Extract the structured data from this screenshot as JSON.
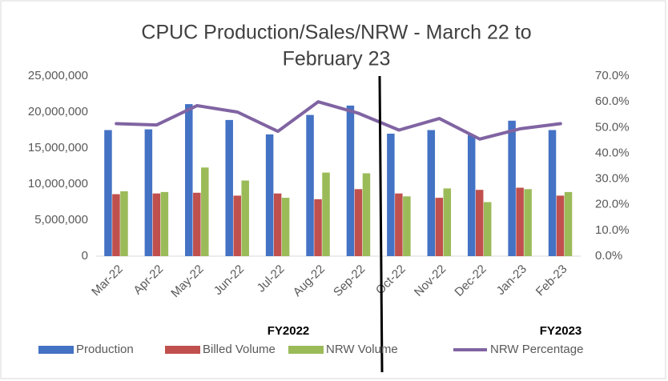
{
  "chart_data": {
    "type": "bar",
    "title_lines": [
      "CPUC Production/Sales/NRW - March 22 to",
      "February 23"
    ],
    "categories": [
      "Mar-22",
      "Apr-22",
      "May-22",
      "Jun-22",
      "Jul-22",
      "Aug-22",
      "Sep-22",
      "Oct-22",
      "Nov-22",
      "Dec-22",
      "Jan-23",
      "Feb-23"
    ],
    "series": [
      {
        "name": "Production",
        "color": "#4472c4",
        "type": "bar",
        "values": [
          17500000,
          17600000,
          21100000,
          18900000,
          16900000,
          19600000,
          20900000,
          17000000,
          17500000,
          16800000,
          18800000,
          17500000
        ]
      },
      {
        "name": "Billed Volume",
        "color": "#c0504d",
        "type": "bar",
        "values": [
          8600000,
          8700000,
          8800000,
          8400000,
          8700000,
          7900000,
          9300000,
          8700000,
          8100000,
          9200000,
          9500000,
          8400000
        ]
      },
      {
        "name": "NRW Volume",
        "color": "#9bbb59",
        "type": "bar",
        "values": [
          9000000,
          8900000,
          12300000,
          10500000,
          8100000,
          11600000,
          11500000,
          8300000,
          9400000,
          7500000,
          9300000,
          8900000
        ]
      },
      {
        "name": "NRW Percentage",
        "color": "#8064a2",
        "type": "line",
        "axis": "y2",
        "values": [
          51.5,
          51,
          58.5,
          56,
          48.5,
          60,
          55.5,
          49,
          53.5,
          45.5,
          49.5,
          51.5
        ]
      }
    ],
    "ylim": [
      0,
      25000000
    ],
    "yticks": [
      0,
      {
        "value": 5000000,
        "label": "5,000,000"
      },
      {
        "value": 10000000,
        "label": "10,000,000"
      },
      {
        "value": 15000000,
        "label": "15,000,000"
      },
      {
        "value": 20000000,
        "label": "20,000,000"
      },
      {
        "value": 25000000,
        "label": "25,000,000"
      }
    ],
    "y2lim": [
      0,
      70
    ],
    "y2ticks": [
      {
        "value": 0,
        "label": "0.0%"
      },
      {
        "value": 10,
        "label": "10.0%"
      },
      {
        "value": 20,
        "label": "20.0%"
      },
      {
        "value": 30,
        "label": "30.0%"
      },
      {
        "value": 40,
        "label": "40.0%"
      },
      {
        "value": 50,
        "label": "50.0%"
      },
      {
        "value": 60,
        "label": "60.0%"
      },
      {
        "value": 70,
        "label": "70.0%"
      }
    ],
    "annotations": [
      "FY2022",
      "FY2023"
    ],
    "legend": "bottom"
  }
}
